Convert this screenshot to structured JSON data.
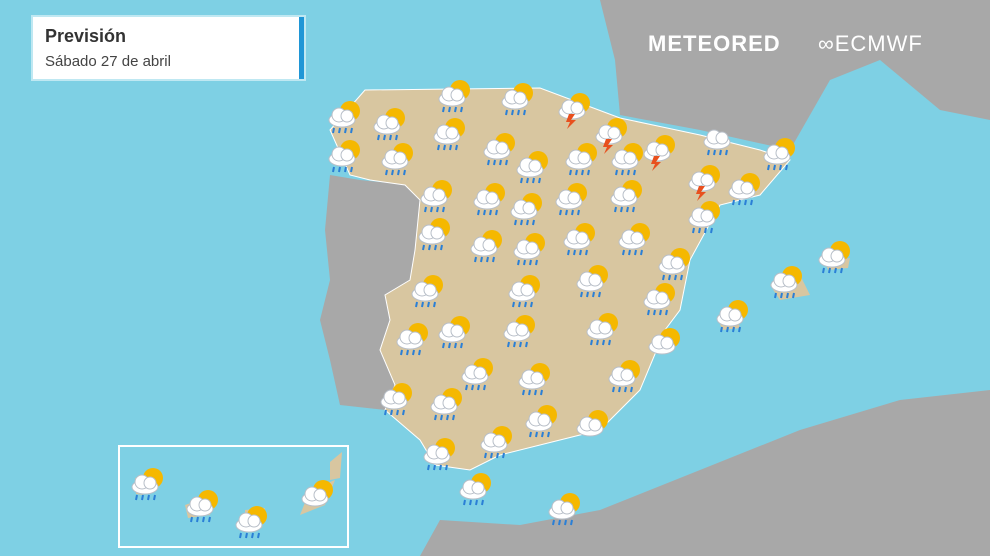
{
  "header": {
    "title": "Previsión",
    "subtitle": "Sábado 27 de abril"
  },
  "logos": {
    "meteored": "METEORED",
    "ecmwf": "ECMWF"
  },
  "colors": {
    "sea": "#7ed0e4",
    "spain": "#d8c6a0",
    "neighbors": "#a8a8a8",
    "accent": "#1f96d6",
    "sun": "#f5b800",
    "rain": "#2a7fd6",
    "lightning": "#e8501e"
  },
  "icons": [
    "sun-cloud-rain",
    "sun-cloud-rain",
    "sun-cloud-rain",
    "sun-cloud-rain",
    "sun-cloud-storm",
    "sun-cloud-storm",
    "sun-cloud-storm",
    "cloud-rain",
    "sun-cloud-rain",
    "sun-cloud-rain",
    "sun-cloud-rain",
    "sun-cloud-rain",
    "sun-cloud-rain",
    "sun-cloud-rain",
    "sun-cloud-rain",
    "sun-cloud-rain",
    "sun-cloud-rain",
    "sun-cloud-rain",
    "sun-cloud-rain",
    "sun-cloud-rain",
    "sun-cloud-rain",
    "sun-cloud-storm",
    "sun-cloud-rain",
    "sun-cloud-rain",
    "sun-cloud-rain",
    "sun-cloud-rain",
    "sun-cloud-rain",
    "sun-cloud-rain",
    "sun-cloud-rain",
    "sun-cloud-rain",
    "sun-cloud-rain",
    "sun-cloud-rain",
    "sun-cloud-rain",
    "sun-cloud-rain",
    "sun-cloud-rain",
    "sun-cloud-rain",
    "sun-cloud-rain",
    "sun-cloud-rain",
    "sun-cloud-rain",
    "sun-cloud-rain",
    "sun-cloud-rain",
    "sun-cloud",
    "sun-cloud-rain",
    "sun-cloud-rain",
    "sun-cloud-rain",
    "sun-cloud-rain",
    "sun-cloud-rain",
    "sun-cloud-rain",
    "sun-cloud",
    "sun-cloud-rain",
    "sun-cloud-rain",
    "sun-cloud-rain",
    "sun-cloud-rain",
    "sun-cloud-rain",
    "sun-cloud-rain",
    "sun-cloud-rain",
    "sun-cloud"
  ]
}
